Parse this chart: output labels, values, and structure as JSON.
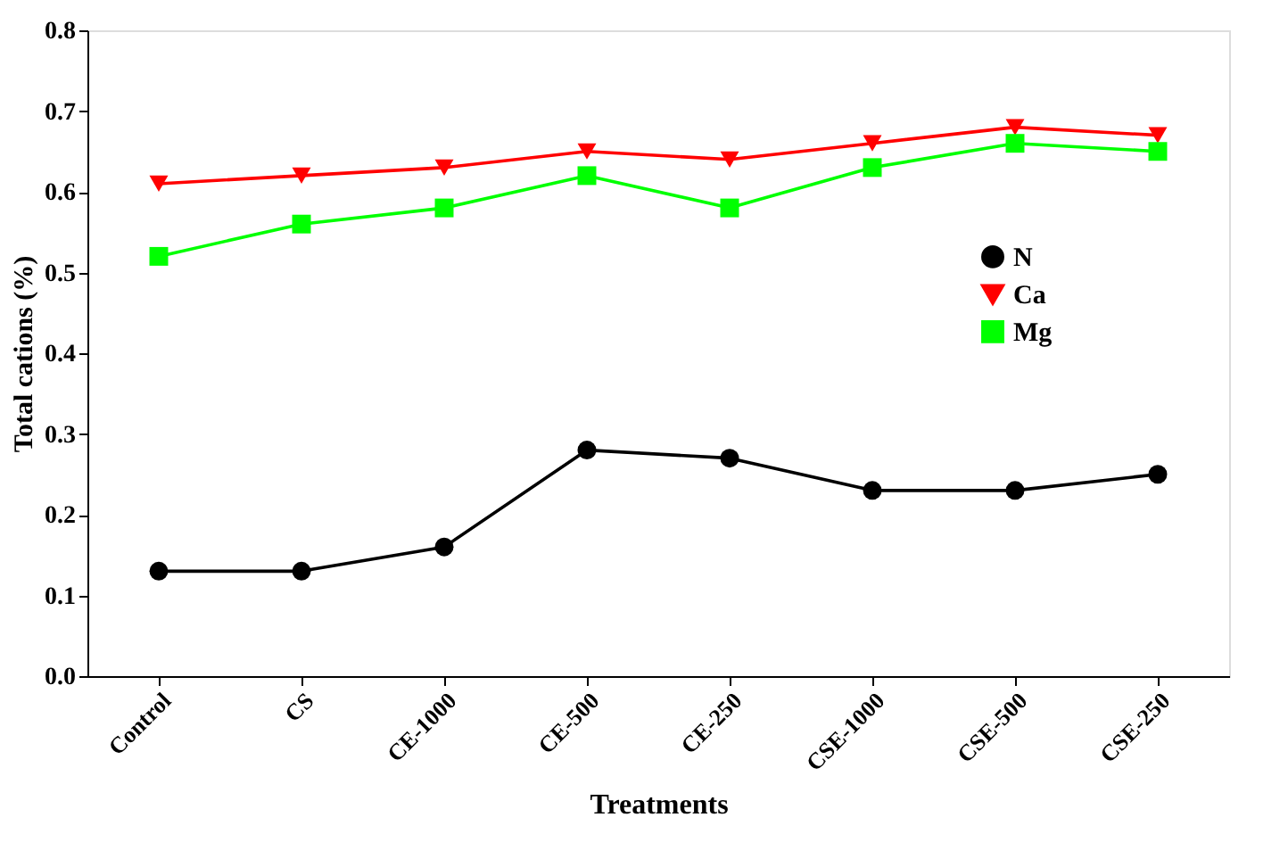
{
  "chart_data": {
    "type": "line",
    "xlabel": "Treatments",
    "ylabel": "Total cations (%)",
    "categories": [
      "Control",
      "CS",
      "CE-1000",
      "CE-500",
      "CE-250",
      "CSE-1000",
      "CSE-500",
      "CSE-250"
    ],
    "series": [
      {
        "name": "N",
        "color": "#000000",
        "marker": "circle",
        "values": [
          0.13,
          0.13,
          0.16,
          0.28,
          0.27,
          0.23,
          0.23,
          0.25
        ]
      },
      {
        "name": "Ca",
        "color": "#ff0000",
        "marker": "triangle",
        "values": [
          0.61,
          0.62,
          0.63,
          0.65,
          0.64,
          0.66,
          0.68,
          0.67
        ]
      },
      {
        "name": "Mg",
        "color": "#00ff00",
        "marker": "square",
        "values": [
          0.52,
          0.56,
          0.58,
          0.62,
          0.58,
          0.63,
          0.66,
          0.65
        ]
      }
    ],
    "ylim": [
      0,
      0.8
    ],
    "yticks": [
      {
        "value": 0,
        "label": "0.0"
      },
      0.1,
      0.2,
      0.3,
      0.4,
      0.5,
      0.6,
      0.7,
      0.8
    ],
    "legend": "right",
    "grid": false,
    "line_style": "solid"
  }
}
